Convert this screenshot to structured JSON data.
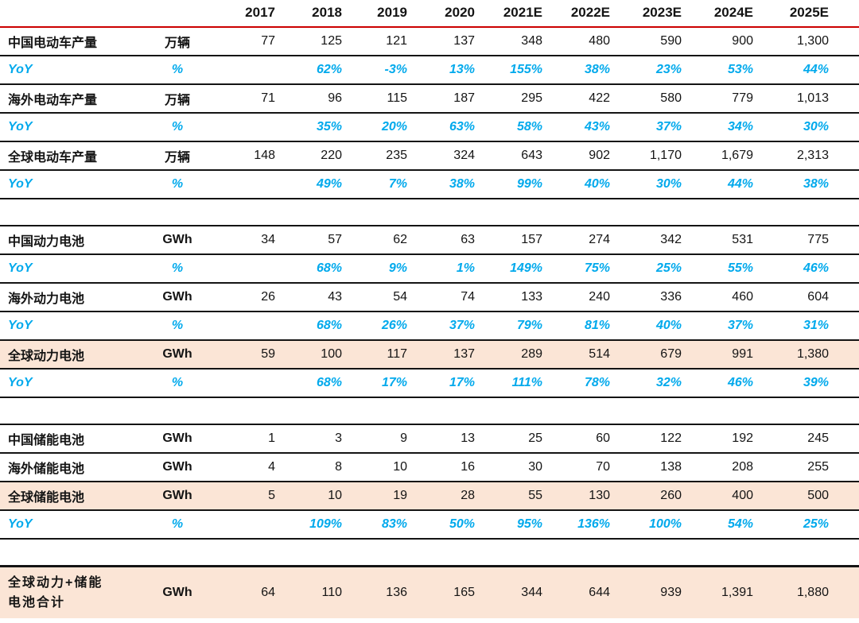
{
  "chart_data": {
    "type": "table",
    "title": "",
    "columns": [
      "2017",
      "2018",
      "2019",
      "2020",
      "2021E",
      "2022E",
      "2023E",
      "2024E",
      "2025E"
    ],
    "corner_label": "",
    "corner_unit": "",
    "rows": [
      {
        "label": "中国电动车产量",
        "unit": "万辆",
        "style": "data",
        "values": [
          77,
          125,
          121,
          137,
          348,
          480,
          590,
          900,
          1300
        ]
      },
      {
        "label": "YoY",
        "unit": "%",
        "style": "yoy",
        "values": [
          null,
          62,
          -3,
          13,
          155,
          38,
          23,
          53,
          44
        ]
      },
      {
        "label": "海外电动车产量",
        "unit": "万辆",
        "style": "data",
        "values": [
          71,
          96,
          115,
          187,
          295,
          422,
          580,
          779,
          1013
        ]
      },
      {
        "label": "YoY",
        "unit": "%",
        "style": "yoy",
        "values": [
          null,
          35,
          20,
          63,
          58,
          43,
          37,
          34,
          30
        ]
      },
      {
        "label": "全球电动车产量",
        "unit": "万辆",
        "style": "data",
        "values": [
          148,
          220,
          235,
          324,
          643,
          902,
          1170,
          1679,
          2313
        ]
      },
      {
        "label": "YoY",
        "unit": "%",
        "style": "yoy",
        "values": [
          null,
          49,
          7,
          38,
          99,
          40,
          30,
          44,
          38
        ]
      },
      {
        "style": "gap"
      },
      {
        "label": "中国动力电池",
        "unit": "GWh",
        "style": "data",
        "values": [
          34,
          57,
          62,
          63,
          157,
          274,
          342,
          531,
          775
        ]
      },
      {
        "label": "YoY",
        "unit": "%",
        "style": "yoy",
        "values": [
          null,
          68,
          9,
          1,
          149,
          75,
          25,
          55,
          46
        ]
      },
      {
        "label": "海外动力电池",
        "unit": "GWh",
        "style": "data",
        "values": [
          26,
          43,
          54,
          74,
          133,
          240,
          336,
          460,
          604
        ]
      },
      {
        "label": "YoY",
        "unit": "%",
        "style": "yoy",
        "values": [
          null,
          68,
          26,
          37,
          79,
          81,
          40,
          37,
          31
        ]
      },
      {
        "label": "全球动力电池",
        "unit": "GWh",
        "style": "highlight",
        "values": [
          59,
          100,
          117,
          137,
          289,
          514,
          679,
          991,
          1380
        ]
      },
      {
        "label": "YoY",
        "unit": "%",
        "style": "yoy",
        "values": [
          null,
          68,
          17,
          17,
          111,
          78,
          32,
          46,
          39
        ]
      },
      {
        "style": "gap"
      },
      {
        "label": "中国储能电池",
        "unit": "GWh",
        "style": "data",
        "values": [
          1,
          3,
          9,
          13,
          25,
          60,
          122,
          192,
          245
        ]
      },
      {
        "label": "海外储能电池",
        "unit": "GWh",
        "style": "data",
        "values": [
          4,
          8,
          10,
          16,
          30,
          70,
          138,
          208,
          255
        ]
      },
      {
        "label": "全球储能电池",
        "unit": "GWh",
        "style": "highlight",
        "values": [
          5,
          10,
          19,
          28,
          55,
          130,
          260,
          400,
          500
        ]
      },
      {
        "label": "YoY",
        "unit": "%",
        "style": "yoy",
        "values": [
          null,
          109,
          83,
          50,
          95,
          136,
          100,
          54,
          25
        ]
      },
      {
        "style": "gap"
      },
      {
        "label": "全球动力+储能\n电池合计",
        "unit": "GWh",
        "style": "total",
        "values": [
          64,
          110,
          136,
          165,
          344,
          644,
          939,
          1391,
          1880
        ]
      }
    ],
    "layout": {
      "value_format": "thousands-comma",
      "yoy_format": "percent",
      "grid": "horizontal-rules-only"
    },
    "colors": {
      "yoy_blue": "#00a9ec",
      "highlight_bg": "#fbe5d6",
      "header_rule_red": "#cc0000",
      "row_rule_black": "#141414",
      "text_black": "#141414",
      "background": "#ffffff"
    }
  }
}
